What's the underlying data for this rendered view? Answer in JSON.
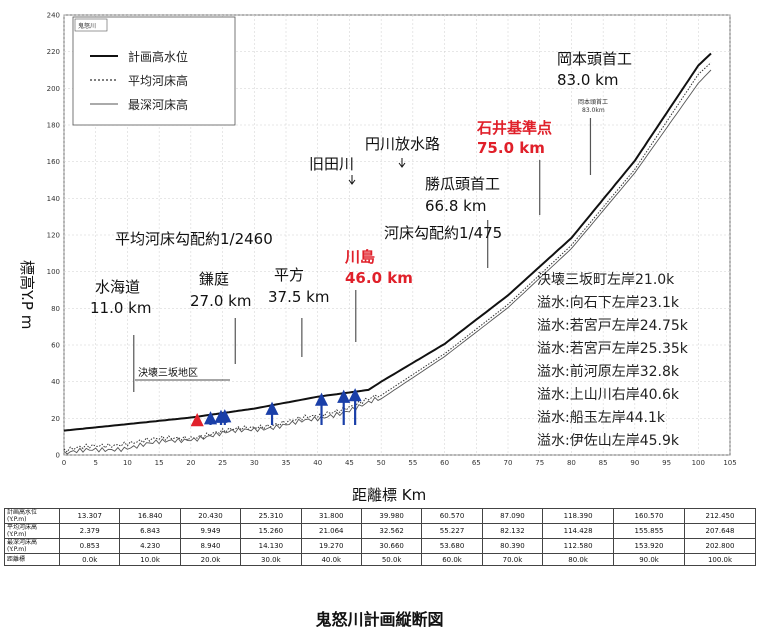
{
  "chart_data": {
    "type": "line",
    "ylabel": "標高Y.P m",
    "xlabel": "距離標 Km",
    "xlim": [
      0,
      105
    ],
    "ylim": [
      0,
      240
    ],
    "x_ticks": [
      "0",
      "5",
      "10",
      "15",
      "20",
      "25",
      "30",
      "35",
      "40",
      "45",
      "50",
      "55",
      "60",
      "65",
      "70",
      "75",
      "80",
      "85",
      "90",
      "95",
      "100",
      "105"
    ],
    "y_ticks": [
      "0",
      "20",
      "40",
      "60",
      "80",
      "100",
      "120",
      "140",
      "160",
      "180",
      "200",
      "220",
      "240"
    ],
    "legend_box_title": "鬼怒川",
    "series": [
      {
        "name": "計画高水位",
        "x": [
          0,
          10,
          20,
          30,
          40,
          48,
          50,
          60,
          70,
          80,
          90,
          100,
          102
        ],
        "y": [
          13.307,
          16.84,
          20.43,
          25.31,
          31.8,
          35.5,
          39.98,
          60.57,
          87.09,
          118.39,
          160.57,
          212.45,
          219
        ]
      },
      {
        "name": "平均河床高",
        "x": [
          0,
          10,
          20,
          30,
          40,
          50,
          60,
          70,
          80,
          90,
          100,
          102
        ],
        "y": [
          2.379,
          6.843,
          9.949,
          15.26,
          21.064,
          32.562,
          55.227,
          82.132,
          114.428,
          155.855,
          207.648,
          214
        ]
      },
      {
        "name": "最深河床高",
        "x": [
          0,
          10,
          20,
          30,
          40,
          50,
          60,
          70,
          80,
          90,
          100,
          102
        ],
        "y": [
          0.853,
          4.23,
          8.94,
          14.13,
          19.27,
          30.66,
          53.68,
          80.39,
          112.58,
          153.92,
          202.8,
          210
        ]
      }
    ],
    "annotations": {
      "okamoto": [
        "岡本頭首工",
        "83.0 km"
      ],
      "okamoto_small": [
        "岡本頭首工",
        "83.0km"
      ],
      "ishii": [
        "石井基準点",
        "75.0 km"
      ],
      "enkawa": "円川放水路",
      "kyutagawa": "旧田川",
      "katsuura": [
        "勝瓜頭首工",
        "66.8 km"
      ],
      "heikin_gradient": "平均河床勾配約1/2460",
      "kasho_gradient": "河床勾配約1/475",
      "kawashima": [
        "川島",
        "46.0 km"
      ],
      "mitsukaido": [
        "水海道",
        "11.0 km"
      ],
      "kamaniwa": [
        "鎌庭",
        "27.0 km"
      ],
      "hirakata": [
        "平方",
        "37.5 km"
      ],
      "misaka": "決壊三坂地区"
    },
    "breaches": [
      {
        "text": "決壊三坂町左岸21.0k",
        "x": 21.0,
        "color": "#e0202a"
      },
      {
        "text": "溢水:向石下左岸23.1k",
        "x": 23.1,
        "color": "#1a3fa8"
      },
      {
        "text": "溢水:若宮戸左岸24.75k",
        "x": 24.75,
        "color": "#1a3fa8"
      },
      {
        "text": "溢水:若宮戸左岸25.35k",
        "x": 25.35,
        "color": "#1a3fa8"
      },
      {
        "text": "溢水:前河原左岸32.8k",
        "x": 32.8,
        "color": "#1a3fa8"
      },
      {
        "text": "溢水:上山川右岸40.6k",
        "x": 40.6,
        "color": "#1a3fa8"
      },
      {
        "text": "溢水:船玉左岸44.1k",
        "x": 44.1,
        "color": "#1a3fa8"
      },
      {
        "text": "溢水:伊佐山左岸45.9k",
        "x": 45.9,
        "color": "#1a3fa8"
      }
    ],
    "table": {
      "rows": [
        {
          "label": "計画高水位",
          "unit": "(Y.P.m)",
          "values": [
            "13.307",
            "16.840",
            "20.430",
            "25.310",
            "31.800",
            "39.980",
            "60.570",
            "87.090",
            "118.390",
            "160.570",
            "212.450"
          ]
        },
        {
          "label": "平均河床高",
          "unit": "(Y.P.m)",
          "values": [
            "2.379",
            "6.843",
            "9.949",
            "15.260",
            "21.064",
            "32.562",
            "55.227",
            "82.132",
            "114.428",
            "155.855",
            "207.648"
          ]
        },
        {
          "label": "最深河床高",
          "unit": "(Y.P.m)",
          "values": [
            "0.853",
            "4.230",
            "8.940",
            "14.130",
            "19.270",
            "30.660",
            "53.680",
            "80.390",
            "112.580",
            "153.920",
            "202.800"
          ]
        },
        {
          "label": "距離標",
          "unit": "",
          "values": [
            "0.0k",
            "10.0k",
            "20.0k",
            "30.0k",
            "40.0k",
            "50.0k",
            "60.0k",
            "70.0k",
            "80.0k",
            "90.0k",
            "100.0k"
          ]
        }
      ]
    },
    "caption": "鬼怒川計画縦断図",
    "colors": {
      "red": "#e0202a",
      "blue": "#1a3fa8"
    }
  }
}
